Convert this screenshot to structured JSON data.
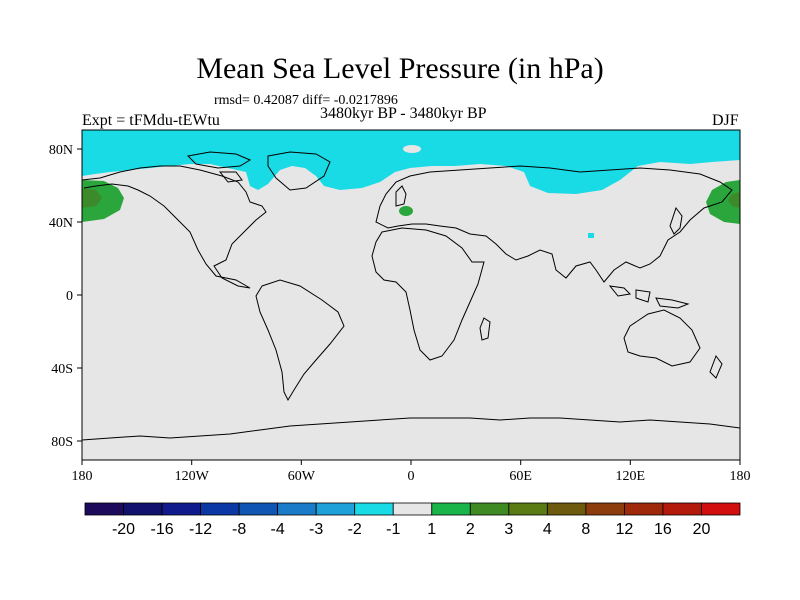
{
  "title": "Mean Sea Level Pressure (in hPa)",
  "stats": "rmsd= 0.42087 diff= -0.0217896",
  "period": "3480kyr BP - 3480kyr BP",
  "expt": "Expt = tFMdu-tEWtu",
  "season": "DJF",
  "axes": {
    "x_ticks": [
      "180",
      "120W",
      "60W",
      "0",
      "60E",
      "120E",
      "180"
    ],
    "y_ticks": [
      "80N",
      "40N",
      "0",
      "40S",
      "80S"
    ]
  },
  "colors": {
    "background": "#e6e6e6",
    "cyan": "#19dbe6",
    "green": "#2aa63c",
    "dark_green": "#3d8a2a"
  },
  "colorbar": {
    "colors": [
      "#1e0a5a",
      "#12126e",
      "#101a8c",
      "#0c38a6",
      "#0f55b4",
      "#1a7cc8",
      "#1ea0d8",
      "#19dbe6",
      "#e6e6e6",
      "#19b44a",
      "#3f8a23",
      "#5a7a14",
      "#6e5a0c",
      "#8c3c0a",
      "#a0280a",
      "#b41a0c",
      "#d20e0e"
    ],
    "labels": [
      "-20",
      "-16",
      "-12",
      "-8",
      "-4",
      "-3",
      "-2",
      "-1",
      "1",
      "2",
      "3",
      "4",
      "8",
      "12",
      "16",
      "20"
    ]
  }
}
